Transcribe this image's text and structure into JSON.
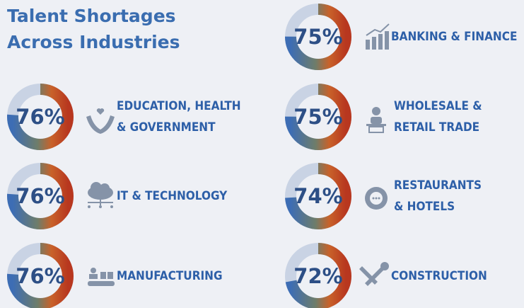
{
  "title": [
    "Talent Shortages",
    "Across Industries"
  ],
  "chart_data": [
    {
      "type": "donut",
      "label": [
        "BANKING & FINANCE"
      ],
      "values": [
        75
      ],
      "value_labels": [
        "75%"
      ],
      "color": "#3d6db4",
      "track_color": "#c9d3e4"
    },
    {
      "type": "donut",
      "label": [
        "EDUCATION, HEALTH",
        "& GOVERNMENT"
      ],
      "values": [
        76
      ],
      "value_labels": [
        "76%"
      ],
      "color": "#3d6db4",
      "track_color": "#c9d3e4"
    },
    {
      "type": "donut",
      "label": [
        "WHOLESALE &",
        "RETAIL TRADE"
      ],
      "values": [
        75
      ],
      "value_labels": [
        "75%"
      ],
      "color": "#3d6db4",
      "track_color": "#c9d3e4"
    },
    {
      "type": "donut",
      "label": [
        "IT & TECHNOLOGY"
      ],
      "values": [
        76
      ],
      "value_labels": [
        "76%"
      ],
      "color": "#3d6db4",
      "track_color": "#c9d3e4"
    },
    {
      "type": "donut",
      "label": [
        "RESTAURANTS",
        "& HOTELS"
      ],
      "values": [
        74
      ],
      "value_labels": [
        "74%"
      ],
      "color": "#3d6db4",
      "track_color": "#c9d3e4"
    },
    {
      "type": "donut",
      "label": [
        "MANUFACTURING"
      ],
      "values": [
        76
      ],
      "value_labels": [
        "76%"
      ],
      "color": "#3d6db4",
      "track_color": "#c9d3e4"
    },
    {
      "type": "donut",
      "label": [
        "CONSTRUCTION"
      ],
      "values": [
        72
      ],
      "value_labels": [
        "72%"
      ],
      "color": "#3d6db4",
      "track_color": "#c9d3e4"
    }
  ]
}
